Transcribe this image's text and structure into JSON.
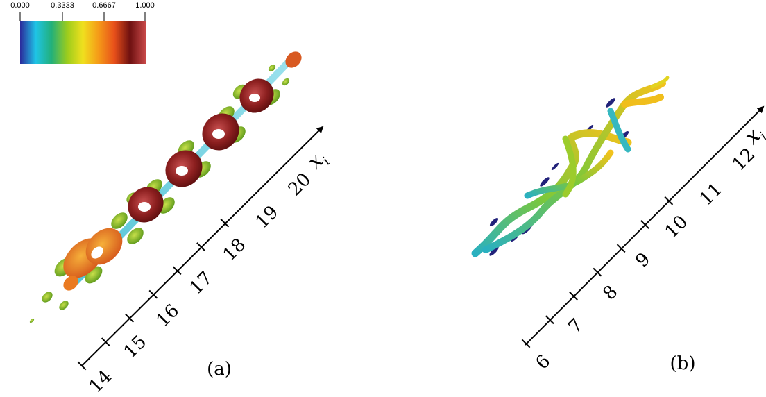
{
  "colorbar": {
    "labels": [
      "0.000",
      "0.3333",
      "0.6667",
      "1.000"
    ],
    "colors": [
      "#2b2b9c",
      "#1fc4e6",
      "#22b07a",
      "#9ccc1c",
      "#f0e01e",
      "#f59a18",
      "#e8501a",
      "#6e1010",
      "#c84848"
    ]
  },
  "panel_a": {
    "caption": "(a)",
    "axis_variable": "x",
    "axis_subscript": "i",
    "ticks": [
      "14",
      "15",
      "16",
      "17",
      "18",
      "19",
      "20"
    ]
  },
  "panel_b": {
    "caption": "(b)",
    "axis_variable": "x",
    "axis_subscript": "i",
    "ticks": [
      "6",
      "7",
      "8",
      "9",
      "10",
      "11",
      "12"
    ]
  }
}
